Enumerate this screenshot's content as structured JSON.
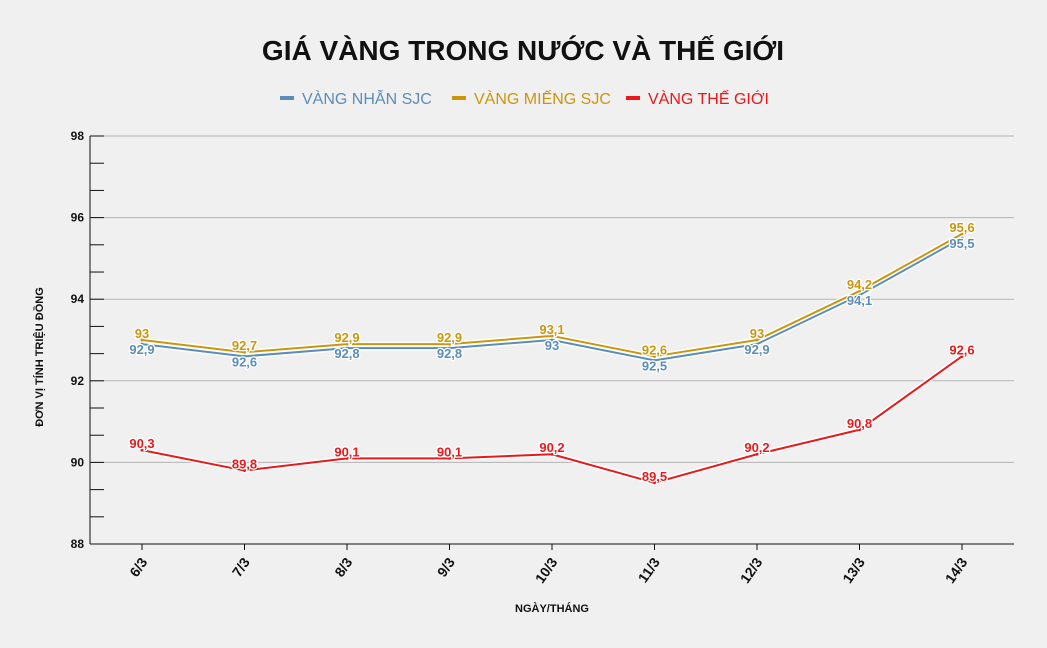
{
  "chart_data": {
    "type": "line",
    "title": "GIÁ VÀNG TRONG NƯỚC VÀ THẾ GIỚI",
    "xlabel": "NGÀY/THÁNG",
    "ylabel": "ĐƠN VỊ TÍNH TRIỆU ĐỒNG",
    "categories": [
      "6/3",
      "7/3",
      "8/3",
      "9/3",
      "10/3",
      "11/3",
      "12/3",
      "13/3",
      "14/3"
    ],
    "ylim": [
      88,
      98
    ],
    "yticks": [
      "88",
      "90",
      "92",
      "94",
      "96",
      "98"
    ],
    "grid": true,
    "legend_position": "top",
    "series": [
      {
        "name": "VÀNG NHẪN SJC",
        "color": "#5b8db8",
        "values": [
          92.9,
          92.6,
          92.8,
          92.8,
          93.0,
          92.5,
          92.9,
          94.1,
          95.5
        ],
        "labels": [
          "92,9",
          "92,6",
          "92,8",
          "92,8",
          "93",
          "92,5",
          "92,9",
          "94,1",
          "95,5"
        ]
      },
      {
        "name": "VÀNG MIẾNG SJC",
        "color": "#c9960c",
        "values": [
          93.0,
          92.7,
          92.9,
          92.9,
          93.1,
          92.6,
          93.0,
          94.2,
          95.6
        ],
        "labels": [
          "93",
          "92,7",
          "92,9",
          "92,9",
          "93,1",
          "92,6",
          "93",
          "94,2",
          "95,6"
        ]
      },
      {
        "name": "VÀNG THẾ GIỚI",
        "color": "#e8191b",
        "values": [
          90.3,
          89.8,
          90.1,
          90.1,
          90.2,
          89.5,
          90.2,
          90.8,
          92.6
        ],
        "labels": [
          "90,3",
          "89,8",
          "90,1",
          "90,1",
          "90,2",
          "89,5",
          "90,2",
          "90,8",
          "92,6"
        ]
      }
    ]
  }
}
